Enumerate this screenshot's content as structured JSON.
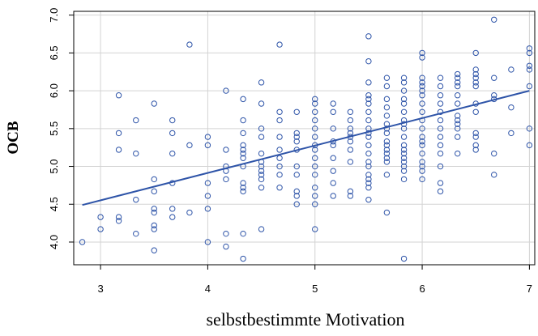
{
  "chart_data": {
    "type": "scatter",
    "xlabel": "selbstbestimmte Motivation",
    "ylabel": "OCB",
    "xlim": [
      2.75,
      7.05
    ],
    "ylim": [
      3.7,
      7.05
    ],
    "x_ticks": [
      3,
      4,
      5,
      6,
      7
    ],
    "y_ticks": [
      4.0,
      4.5,
      5.0,
      5.5,
      6.0,
      6.5,
      7.0
    ],
    "x_tick_labels": [
      "3",
      "4",
      "5",
      "6",
      "7"
    ],
    "y_tick_labels": [
      "4.0",
      "4.5",
      "5.0",
      "5.5",
      "6.0",
      "6.5",
      "7.0"
    ],
    "grid": true,
    "point_color": "#2e54a8",
    "line_color": "#2e54a8",
    "regression_line": {
      "x": [
        2.83,
        7.0
      ],
      "y": [
        4.49,
        6.0
      ]
    },
    "series": [
      {
        "points": [
          [
            2.83,
            4.0
          ],
          [
            3.0,
            4.33
          ],
          [
            3.0,
            4.17
          ],
          [
            3.17,
            4.33
          ],
          [
            3.17,
            4.28
          ],
          [
            3.17,
            5.94
          ],
          [
            3.17,
            5.44
          ],
          [
            3.17,
            5.22
          ],
          [
            3.33,
            5.61
          ],
          [
            3.33,
            5.17
          ],
          [
            3.33,
            4.56
          ],
          [
            3.33,
            4.11
          ],
          [
            3.5,
            5.83
          ],
          [
            3.5,
            4.83
          ],
          [
            3.5,
            4.67
          ],
          [
            3.5,
            4.44
          ],
          [
            3.5,
            4.39
          ],
          [
            3.5,
            4.22
          ],
          [
            3.5,
            4.17
          ],
          [
            3.5,
            3.89
          ],
          [
            3.67,
            5.61
          ],
          [
            3.67,
            5.44
          ],
          [
            3.67,
            5.17
          ],
          [
            3.67,
            4.78
          ],
          [
            3.67,
            4.44
          ],
          [
            3.67,
            4.33
          ],
          [
            3.83,
            6.61
          ],
          [
            3.83,
            5.28
          ],
          [
            3.83,
            4.39
          ],
          [
            4.0,
            5.39
          ],
          [
            4.0,
            5.28
          ],
          [
            4.0,
            4.78
          ],
          [
            4.0,
            4.61
          ],
          [
            4.0,
            4.44
          ],
          [
            4.0,
            4.0
          ],
          [
            4.17,
            6.0
          ],
          [
            4.17,
            5.22
          ],
          [
            4.17,
            5.0
          ],
          [
            4.17,
            4.94
          ],
          [
            4.17,
            4.83
          ],
          [
            4.17,
            4.11
          ],
          [
            4.17,
            3.94
          ],
          [
            4.33,
            5.89
          ],
          [
            4.33,
            5.61
          ],
          [
            4.33,
            5.44
          ],
          [
            4.33,
            5.28
          ],
          [
            4.33,
            5.22
          ],
          [
            4.33,
            5.17
          ],
          [
            4.33,
            5.11
          ],
          [
            4.33,
            5.0
          ],
          [
            4.33,
            4.78
          ],
          [
            4.33,
            4.72
          ],
          [
            4.33,
            4.67
          ],
          [
            4.33,
            4.11
          ],
          [
            4.33,
            3.78
          ],
          [
            4.5,
            6.11
          ],
          [
            4.5,
            5.83
          ],
          [
            4.5,
            5.5
          ],
          [
            4.5,
            5.39
          ],
          [
            4.5,
            5.17
          ],
          [
            4.5,
            5.06
          ],
          [
            4.5,
            5.0
          ],
          [
            4.5,
            4.94
          ],
          [
            4.5,
            4.89
          ],
          [
            4.5,
            4.83
          ],
          [
            4.5,
            4.72
          ],
          [
            4.5,
            4.17
          ],
          [
            4.67,
            6.61
          ],
          [
            4.67,
            5.72
          ],
          [
            4.67,
            5.61
          ],
          [
            4.67,
            5.39
          ],
          [
            4.67,
            5.22
          ],
          [
            4.67,
            5.11
          ],
          [
            4.67,
            5.0
          ],
          [
            4.67,
            4.89
          ],
          [
            4.67,
            4.72
          ],
          [
            4.83,
            5.72
          ],
          [
            4.83,
            5.44
          ],
          [
            4.83,
            5.39
          ],
          [
            4.83,
            5.33
          ],
          [
            4.83,
            5.22
          ],
          [
            4.83,
            5.0
          ],
          [
            4.83,
            4.89
          ],
          [
            4.83,
            4.67
          ],
          [
            4.83,
            4.61
          ],
          [
            4.83,
            4.5
          ],
          [
            5.0,
            5.89
          ],
          [
            5.0,
            5.83
          ],
          [
            5.0,
            5.72
          ],
          [
            5.0,
            5.61
          ],
          [
            5.0,
            5.5
          ],
          [
            5.0,
            5.39
          ],
          [
            5.0,
            5.28
          ],
          [
            5.0,
            5.22
          ],
          [
            5.0,
            5.11
          ],
          [
            5.0,
            5.0
          ],
          [
            5.0,
            4.89
          ],
          [
            5.0,
            4.72
          ],
          [
            5.0,
            4.61
          ],
          [
            5.0,
            4.5
          ],
          [
            5.0,
            4.17
          ],
          [
            5.17,
            5.83
          ],
          [
            5.17,
            5.72
          ],
          [
            5.17,
            5.5
          ],
          [
            5.17,
            5.33
          ],
          [
            5.17,
            5.28
          ],
          [
            5.17,
            5.11
          ],
          [
            5.17,
            4.94
          ],
          [
            5.17,
            4.78
          ],
          [
            5.17,
            4.61
          ],
          [
            5.33,
            5.72
          ],
          [
            5.33,
            5.61
          ],
          [
            5.33,
            5.5
          ],
          [
            5.33,
            5.44
          ],
          [
            5.33,
            5.39
          ],
          [
            5.33,
            5.33
          ],
          [
            5.33,
            5.22
          ],
          [
            5.33,
            5.06
          ],
          [
            5.33,
            4.67
          ],
          [
            5.33,
            4.61
          ],
          [
            5.5,
            5.94
          ],
          [
            5.5,
            5.89
          ],
          [
            5.5,
            5.83
          ],
          [
            5.5,
            5.72
          ],
          [
            5.5,
            5.61
          ],
          [
            5.5,
            5.5
          ],
          [
            5.5,
            5.44
          ],
          [
            5.5,
            5.39
          ],
          [
            5.5,
            5.28
          ],
          [
            5.5,
            5.17
          ],
          [
            5.5,
            5.06
          ],
          [
            5.5,
            5.0
          ],
          [
            5.5,
            4.89
          ],
          [
            5.5,
            4.78
          ],
          [
            5.5,
            4.72
          ],
          [
            5.5,
            6.72
          ],
          [
            5.5,
            6.39
          ],
          [
            5.5,
            6.11
          ],
          [
            5.5,
            4.83
          ],
          [
            5.5,
            4.56
          ],
          [
            5.67,
            6.17
          ],
          [
            5.67,
            6.06
          ],
          [
            5.67,
            5.89
          ],
          [
            5.67,
            5.78
          ],
          [
            5.67,
            5.67
          ],
          [
            5.67,
            5.56
          ],
          [
            5.67,
            5.5
          ],
          [
            5.67,
            5.44
          ],
          [
            5.67,
            5.33
          ],
          [
            5.67,
            5.28
          ],
          [
            5.67,
            5.22
          ],
          [
            5.67,
            5.17
          ],
          [
            5.67,
            5.11
          ],
          [
            5.67,
            5.06
          ],
          [
            5.67,
            4.89
          ],
          [
            5.67,
            4.39
          ],
          [
            5.83,
            6.11
          ],
          [
            5.83,
            6.0
          ],
          [
            5.83,
            5.89
          ],
          [
            5.83,
            5.83
          ],
          [
            5.83,
            5.72
          ],
          [
            5.83,
            5.61
          ],
          [
            5.83,
            5.5
          ],
          [
            5.83,
            5.39
          ],
          [
            5.83,
            5.28
          ],
          [
            5.83,
            5.22
          ],
          [
            5.83,
            5.17
          ],
          [
            5.83,
            5.11
          ],
          [
            5.83,
            5.06
          ],
          [
            5.83,
            5.0
          ],
          [
            5.83,
            4.94
          ],
          [
            5.83,
            4.83
          ],
          [
            5.83,
            3.78
          ],
          [
            5.83,
            6.17
          ],
          [
            5.83,
            5.56
          ],
          [
            6.0,
            6.5
          ],
          [
            6.0,
            6.44
          ],
          [
            6.0,
            6.17
          ],
          [
            6.0,
            6.11
          ],
          [
            6.0,
            6.06
          ],
          [
            6.0,
            6.0
          ],
          [
            6.0,
            5.94
          ],
          [
            6.0,
            5.83
          ],
          [
            6.0,
            5.72
          ],
          [
            6.0,
            5.61
          ],
          [
            6.0,
            5.5
          ],
          [
            6.0,
            5.39
          ],
          [
            6.0,
            5.33
          ],
          [
            6.0,
            5.28
          ],
          [
            6.0,
            5.17
          ],
          [
            6.0,
            5.06
          ],
          [
            6.0,
            5.0
          ],
          [
            6.0,
            4.94
          ],
          [
            6.0,
            4.83
          ],
          [
            6.17,
            6.17
          ],
          [
            6.17,
            6.06
          ],
          [
            6.17,
            5.94
          ],
          [
            6.17,
            5.83
          ],
          [
            6.17,
            5.72
          ],
          [
            6.17,
            5.61
          ],
          [
            6.17,
            5.5
          ],
          [
            6.17,
            5.39
          ],
          [
            6.17,
            5.28
          ],
          [
            6.17,
            5.17
          ],
          [
            6.17,
            5.0
          ],
          [
            6.17,
            4.78
          ],
          [
            6.17,
            4.67
          ],
          [
            6.33,
            6.22
          ],
          [
            6.33,
            6.17
          ],
          [
            6.33,
            6.11
          ],
          [
            6.33,
            6.06
          ],
          [
            6.33,
            5.94
          ],
          [
            6.33,
            5.83
          ],
          [
            6.33,
            5.67
          ],
          [
            6.33,
            5.61
          ],
          [
            6.33,
            5.56
          ],
          [
            6.33,
            5.5
          ],
          [
            6.33,
            5.39
          ],
          [
            6.33,
            5.17
          ],
          [
            6.5,
            6.5
          ],
          [
            6.5,
            6.28
          ],
          [
            6.5,
            6.22
          ],
          [
            6.5,
            6.17
          ],
          [
            6.5,
            6.11
          ],
          [
            6.5,
            6.06
          ],
          [
            6.5,
            5.83
          ],
          [
            6.5,
            5.72
          ],
          [
            6.5,
            5.44
          ],
          [
            6.5,
            5.39
          ],
          [
            6.5,
            5.28
          ],
          [
            6.5,
            5.22
          ],
          [
            6.67,
            6.94
          ],
          [
            6.67,
            6.17
          ],
          [
            6.67,
            5.94
          ],
          [
            6.67,
            5.89
          ],
          [
            6.67,
            5.17
          ],
          [
            6.67,
            4.89
          ],
          [
            6.83,
            6.28
          ],
          [
            6.83,
            5.78
          ],
          [
            6.83,
            5.44
          ],
          [
            7.0,
            6.56
          ],
          [
            7.0,
            6.5
          ],
          [
            7.0,
            6.33
          ],
          [
            7.0,
            6.28
          ],
          [
            7.0,
            6.06
          ],
          [
            7.0,
            5.5
          ],
          [
            7.0,
            5.28
          ]
        ]
      }
    ]
  }
}
